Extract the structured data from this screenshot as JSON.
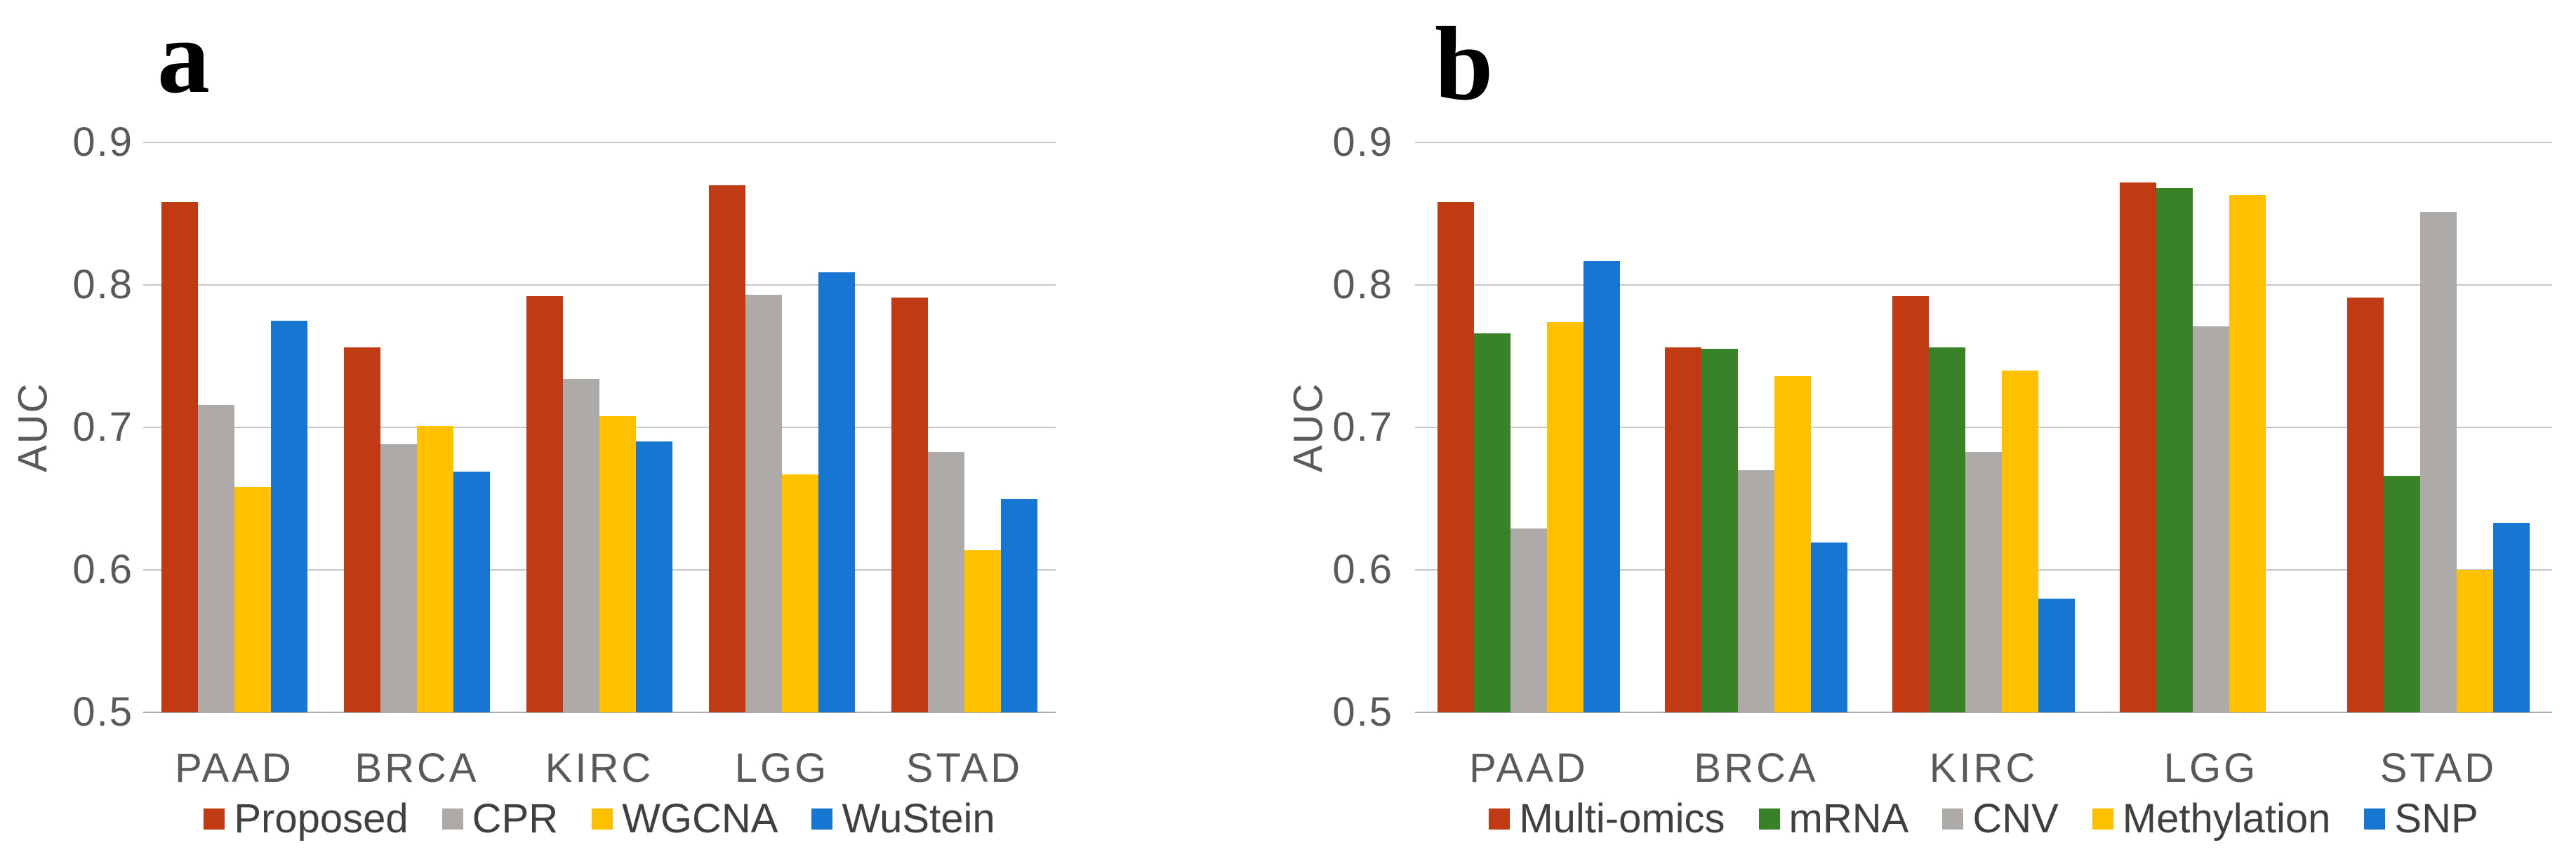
{
  "figure": {
    "background": "#ffffff"
  },
  "colors": {
    "red": "#c03a14",
    "green": "#3a8227",
    "gray": "#aeaaa7",
    "yellow": "#ffc000",
    "blue": "#1776d2",
    "gridline": "#c6c6c6",
    "tick_text": "#5a5a5a",
    "legend_text": "#404040"
  },
  "chart_data": [
    {
      "type": "bar",
      "panel_label": "a",
      "ylabel": "AUC",
      "ylim": [
        0.5,
        0.9
      ],
      "yticks": [
        "0.9",
        "0.8",
        "0.7",
        "0.6",
        "0.5"
      ],
      "grid": true,
      "legend_position": "bottom",
      "categories": [
        "PAAD",
        "BRCA",
        "KIRC",
        "LGG",
        "STAD"
      ],
      "series": [
        {
          "name": "Proposed",
          "color": "#c03a14",
          "values": [
            0.858,
            0.756,
            0.792,
            0.87,
            0.791
          ]
        },
        {
          "name": "CPR",
          "color": "#aeaaa7",
          "values": [
            0.716,
            0.688,
            0.734,
            0.793,
            0.683
          ]
        },
        {
          "name": "WGCNA",
          "color": "#ffc000",
          "values": [
            0.658,
            0.701,
            0.708,
            0.667,
            0.614
          ]
        },
        {
          "name": "WuStein",
          "color": "#1776d2",
          "values": [
            0.775,
            0.669,
            0.69,
            0.809,
            0.65
          ]
        }
      ]
    },
    {
      "type": "bar",
      "panel_label": "b",
      "ylabel": "AUC",
      "ylim": [
        0.5,
        0.9
      ],
      "yticks": [
        "0.9",
        "0.8",
        "0.7",
        "0.6",
        "0.5"
      ],
      "grid": true,
      "legend_position": "bottom",
      "categories": [
        "PAAD",
        "BRCA",
        "KIRC",
        "LGG",
        "STAD"
      ],
      "series": [
        {
          "name": "Multi-omics",
          "color": "#c03a14",
          "values": [
            0.858,
            0.756,
            0.792,
            0.872,
            0.791
          ]
        },
        {
          "name": "mRNA",
          "color": "#3a8227",
          "values": [
            0.766,
            0.755,
            0.756,
            0.868,
            0.666
          ]
        },
        {
          "name": "CNV",
          "color": "#aeaaa7",
          "values": [
            0.629,
            0.67,
            0.683,
            0.771,
            0.851
          ]
        },
        {
          "name": "Methylation",
          "color": "#ffc000",
          "values": [
            0.774,
            0.736,
            0.74,
            0.863,
            0.6
          ]
        },
        {
          "name": "SNP",
          "color": "#1776d2",
          "values": [
            0.817,
            0.619,
            0.58,
            null,
            0.633
          ]
        }
      ]
    }
  ]
}
